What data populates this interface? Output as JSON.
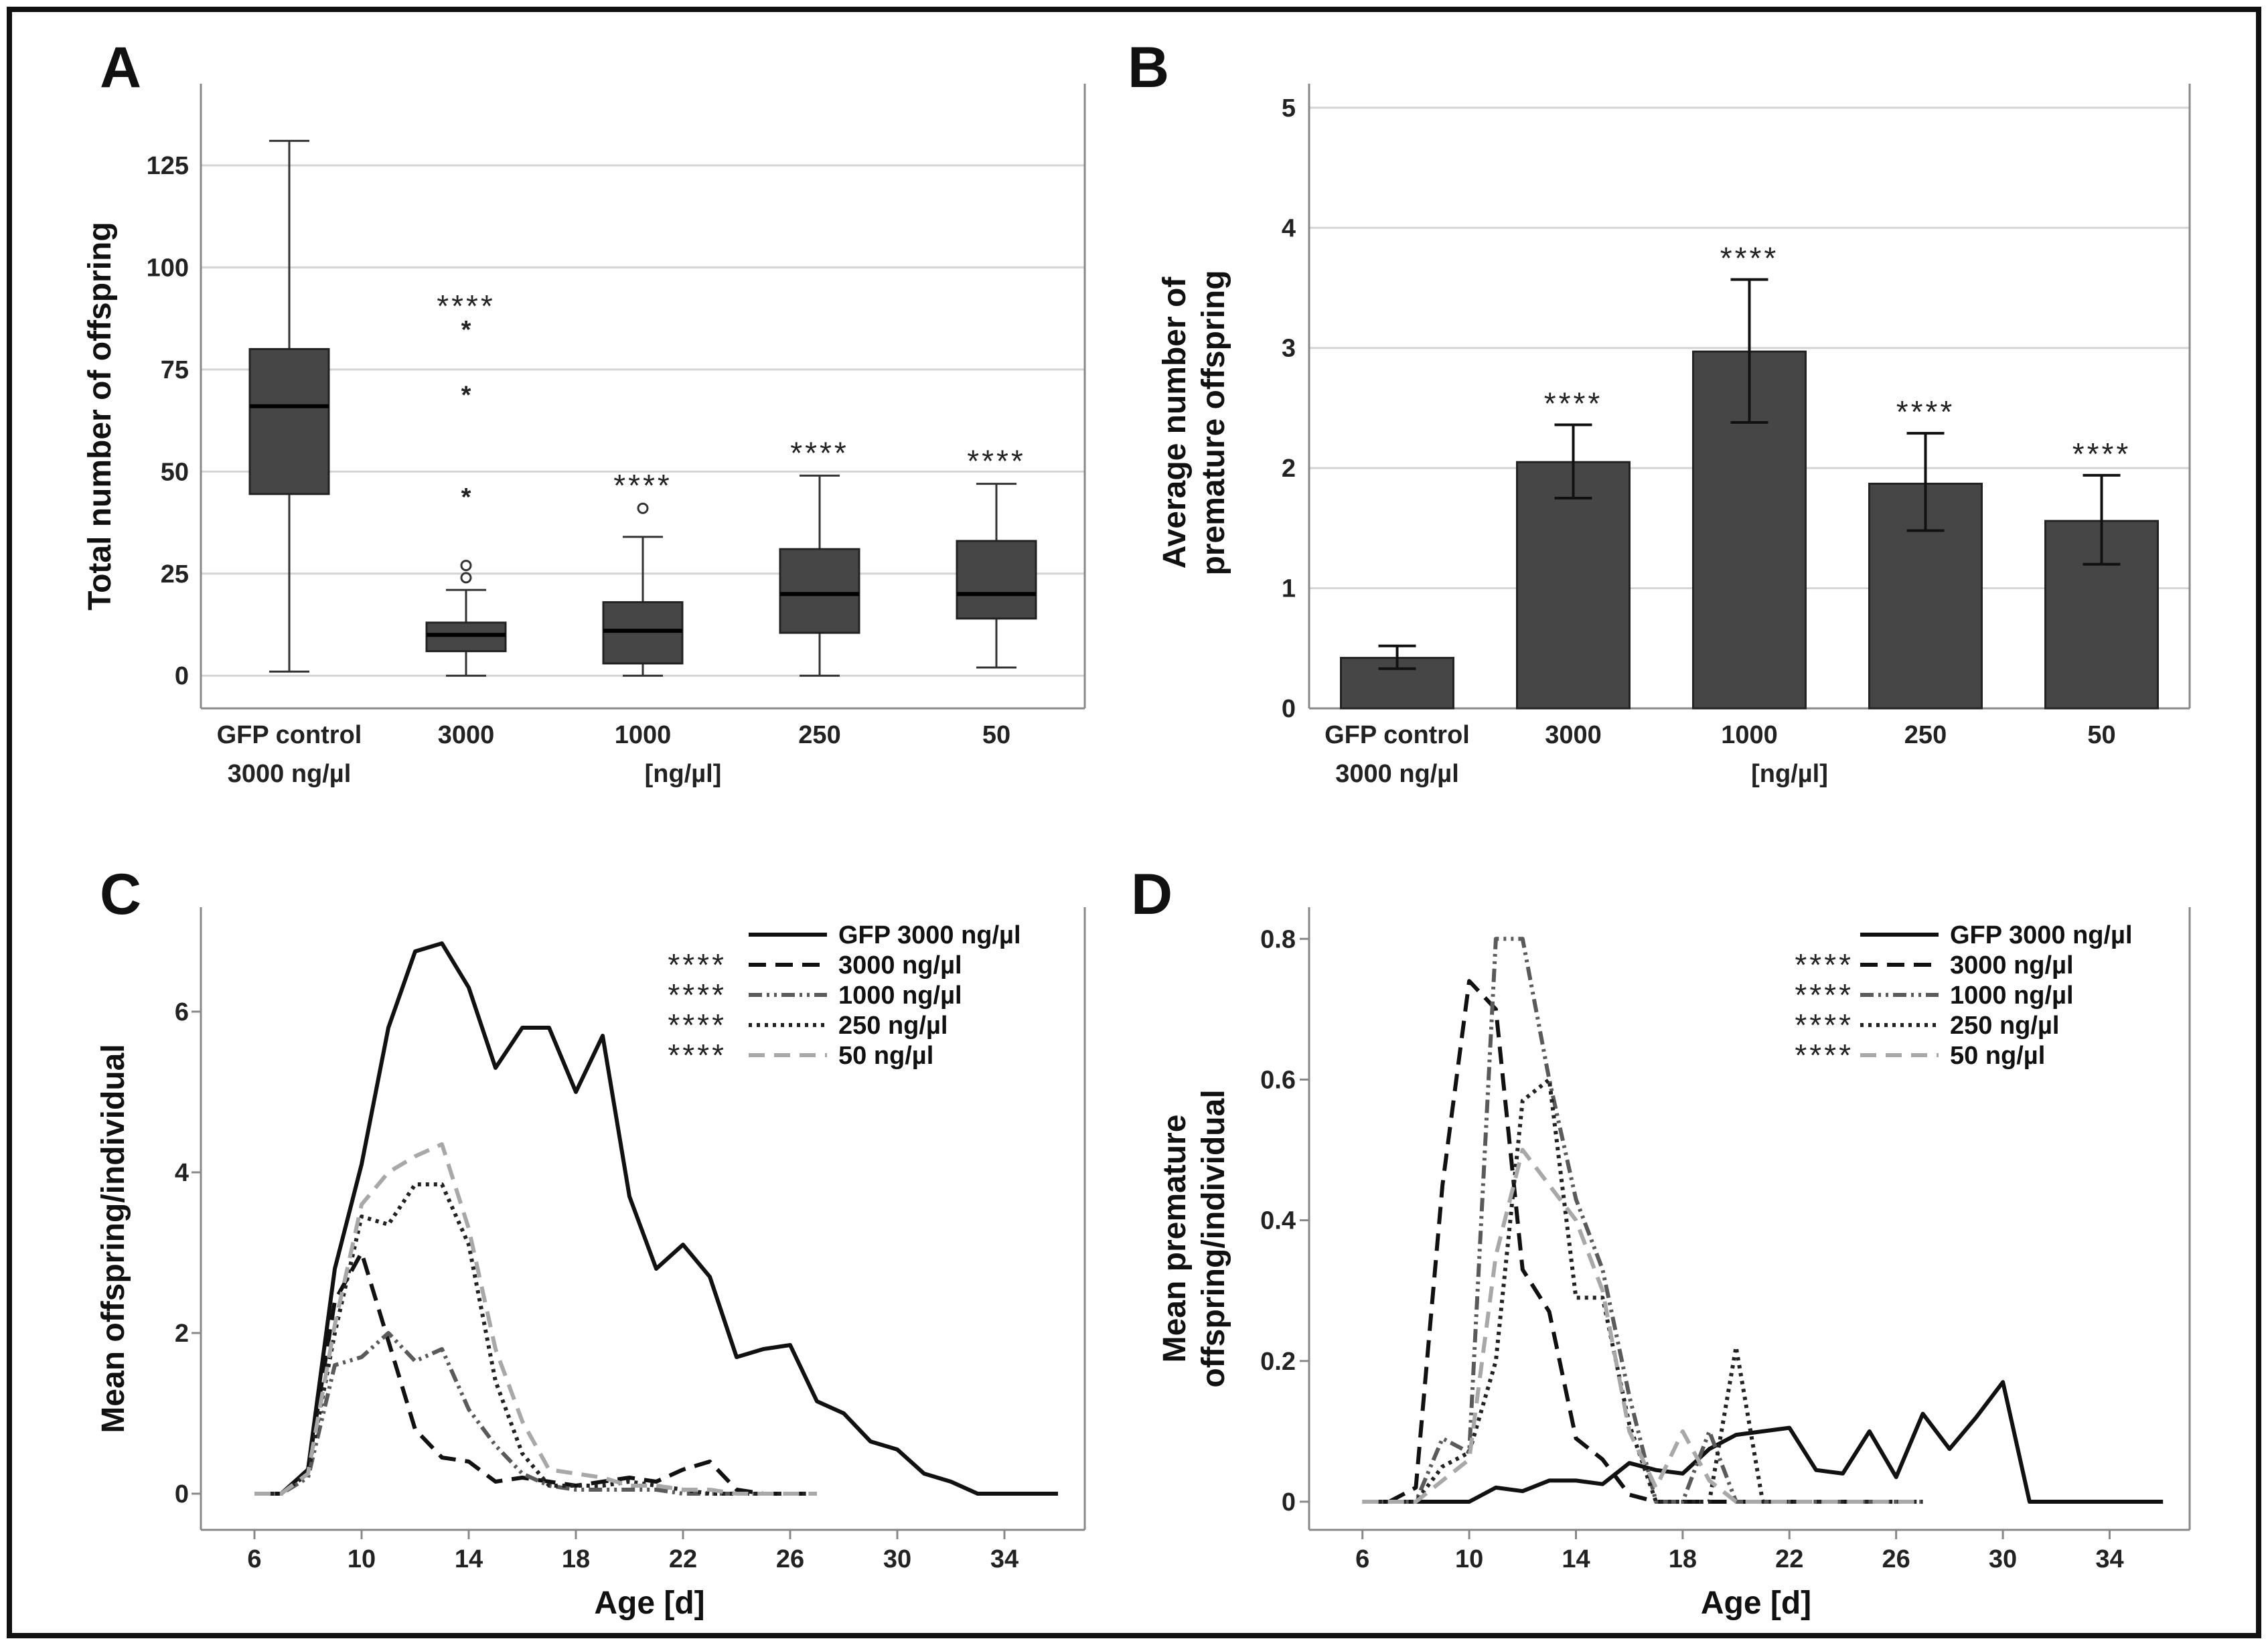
{
  "chart_data": [
    {
      "panel": "A",
      "type": "box",
      "ylabel": "Total number of offspring",
      "xlabel": "[ng/µl]",
      "ylim": [
        -8,
        145
      ],
      "yticks": [
        0,
        25,
        50,
        75,
        100,
        125
      ],
      "categories": [
        [
          "GFP control",
          "3000 ng/µl"
        ],
        [
          "3000"
        ],
        [
          "1000"
        ],
        [
          "250"
        ],
        [
          "50"
        ]
      ],
      "boxes": [
        {
          "min": 1,
          "q1": 44.5,
          "median": 66,
          "q3": 80,
          "max": 131,
          "outliers": [],
          "extremes": [],
          "sig": ""
        },
        {
          "min": 0,
          "q1": 6,
          "median": 10,
          "q3": 13,
          "max": 21,
          "outliers": [
            24,
            27
          ],
          "extremes": [
            44,
            69,
            85
          ],
          "sig": "****"
        },
        {
          "min": 0,
          "q1": 3,
          "median": 11,
          "q3": 18,
          "max": 34,
          "outliers": [
            41
          ],
          "extremes": [],
          "sig": "****"
        },
        {
          "min": 0,
          "q1": 10.5,
          "median": 20,
          "q3": 31,
          "max": 49,
          "outliers": [],
          "extremes": [],
          "sig": "****"
        },
        {
          "min": 2,
          "q1": 14,
          "median": 20,
          "q3": 33,
          "max": 47,
          "outliers": [],
          "extremes": [],
          "sig": "****"
        }
      ]
    },
    {
      "panel": "B",
      "type": "bar",
      "ylabel": [
        "Average number of",
        "premature offspring"
      ],
      "xlabel": "[ng/µl]",
      "ylim": [
        0,
        5.2
      ],
      "yticks": [
        0,
        1,
        2,
        3,
        4,
        5
      ],
      "categories": [
        [
          "GFP control",
          "3000 ng/µl"
        ],
        [
          "3000"
        ],
        [
          "1000"
        ],
        [
          "250"
        ],
        [
          "50"
        ]
      ],
      "values": [
        0.42,
        2.05,
        2.97,
        1.87,
        1.56
      ],
      "err_low": [
        0.33,
        1.75,
        2.38,
        1.48,
        1.2
      ],
      "err_high": [
        0.52,
        2.36,
        3.57,
        2.29,
        1.94
      ],
      "sig": [
        "",
        "****",
        "****",
        "****",
        "****"
      ]
    },
    {
      "panel": "C",
      "type": "line",
      "xlabel": "Age [d]",
      "ylabel": "Mean offspring/individual",
      "xlim": [
        4,
        37
      ],
      "ylim": [
        -0.45,
        7.3
      ],
      "xticks": [
        6,
        10,
        14,
        18,
        22,
        26,
        30,
        34
      ],
      "yticks": [
        0,
        2,
        4,
        6
      ],
      "series": [
        {
          "name": "GFP 3000 ng/µl",
          "sig": "",
          "style": "solid",
          "x": [
            6,
            7,
            8,
            9,
            10,
            11,
            12,
            13,
            14,
            15,
            16,
            17,
            18,
            19,
            20,
            21,
            22,
            23,
            24,
            25,
            26,
            27,
            28,
            29,
            30,
            31,
            32,
            33,
            34,
            35,
            36
          ],
          "y": [
            0,
            0,
            0.3,
            2.8,
            4.1,
            5.8,
            6.75,
            6.85,
            6.3,
            5.3,
            5.8,
            5.8,
            5.0,
            5.7,
            3.7,
            2.8,
            3.1,
            2.7,
            1.7,
            1.8,
            1.85,
            1.15,
            1.0,
            0.65,
            0.55,
            0.25,
            0.15,
            0,
            0,
            0,
            0
          ]
        },
        {
          "name": "3000 ng/µl",
          "sig": "****",
          "style": "dash",
          "x": [
            6,
            7,
            8,
            9,
            10,
            11,
            12,
            13,
            14,
            15,
            16,
            17,
            18,
            19,
            20,
            21,
            22,
            23,
            24,
            25,
            26,
            27
          ],
          "y": [
            0,
            0,
            0.3,
            2.4,
            3.0,
            1.9,
            0.8,
            0.45,
            0.4,
            0.15,
            0.2,
            0.15,
            0.1,
            0.15,
            0.2,
            0.15,
            0.3,
            0.4,
            0.05,
            0,
            0,
            0
          ]
        },
        {
          "name": "1000 ng/µl",
          "sig": "****",
          "style": "dashdotdot",
          "x": [
            6,
            7,
            8,
            9,
            10,
            11,
            12,
            13,
            14,
            15,
            16,
            17,
            18,
            19,
            20,
            21,
            22,
            23,
            24,
            25,
            26,
            27
          ],
          "y": [
            0,
            0,
            0.2,
            1.6,
            1.7,
            2.0,
            1.65,
            1.8,
            1.05,
            0.6,
            0.25,
            0.1,
            0.05,
            0.05,
            0.05,
            0.05,
            0,
            0,
            0,
            0,
            0,
            0
          ]
        },
        {
          "name": "250 ng/µl",
          "sig": "****",
          "style": "dot",
          "x": [
            6,
            7,
            8,
            9,
            10,
            11,
            12,
            13,
            14,
            15,
            16,
            17,
            18,
            19,
            20,
            21,
            22,
            23,
            24,
            25,
            26,
            27
          ],
          "y": [
            0,
            0,
            0.25,
            2.0,
            3.45,
            3.35,
            3.85,
            3.85,
            3.1,
            1.4,
            0.5,
            0.1,
            0.1,
            0.1,
            0.15,
            0.1,
            0.05,
            0,
            0,
            0,
            0,
            0
          ]
        },
        {
          "name": "50 ng/µl",
          "sig": "****",
          "style": "dash-gray",
          "x": [
            6,
            7,
            8,
            9,
            10,
            11,
            12,
            13,
            14,
            15,
            16,
            17,
            18,
            19,
            20,
            21,
            22,
            23,
            24,
            25,
            26,
            27
          ],
          "y": [
            0,
            0,
            0.25,
            2.1,
            3.6,
            4.0,
            4.2,
            4.35,
            3.3,
            1.8,
            0.9,
            0.3,
            0.25,
            0.2,
            0.1,
            0.1,
            0.05,
            0.05,
            0,
            0,
            0,
            0
          ]
        }
      ]
    },
    {
      "panel": "D",
      "type": "line",
      "xlabel": "Age [d]",
      "ylabel": [
        "Mean premature",
        "offspring/individual"
      ],
      "xlim": [
        4,
        37
      ],
      "ylim": [
        -0.04,
        0.845
      ],
      "xticks": [
        6,
        10,
        14,
        18,
        22,
        26,
        30,
        34
      ],
      "yticks": [
        0,
        0.2,
        0.4,
        0.6,
        0.8
      ],
      "series": [
        {
          "name": "GFP 3000 ng/µl",
          "sig": "",
          "style": "solid",
          "x": [
            6,
            7,
            8,
            9,
            10,
            11,
            12,
            13,
            14,
            15,
            16,
            17,
            18,
            19,
            20,
            21,
            22,
            23,
            24,
            25,
            26,
            27,
            28,
            29,
            30,
            31,
            32,
            33,
            34,
            35,
            36
          ],
          "y": [
            0,
            0,
            0,
            0,
            0,
            0.02,
            0.015,
            0.03,
            0.03,
            0.025,
            0.055,
            0.045,
            0.04,
            0.075,
            0.095,
            0.1,
            0.105,
            0.045,
            0.04,
            0.1,
            0.035,
            0.125,
            0.075,
            0.12,
            0.17,
            0,
            0,
            0,
            0,
            0,
            0
          ]
        },
        {
          "name": "3000 ng/µl",
          "sig": "****",
          "style": "dash",
          "x": [
            6,
            7,
            8,
            9,
            10,
            11,
            12,
            13,
            14,
            15,
            16,
            17,
            18,
            19,
            20,
            21,
            22,
            23,
            24,
            25,
            26,
            27
          ],
          "y": [
            0,
            0,
            0.02,
            0.45,
            0.74,
            0.7,
            0.33,
            0.27,
            0.09,
            0.06,
            0.01,
            0,
            0,
            0,
            0,
            0,
            0,
            0,
            0,
            0,
            0,
            0
          ]
        },
        {
          "name": "1000 ng/µl",
          "sig": "****",
          "style": "dashdotdot",
          "x": [
            6,
            7,
            8,
            9,
            10,
            11,
            12,
            13,
            14,
            15,
            16,
            17,
            18,
            19,
            20,
            21,
            22,
            23,
            24,
            25,
            26,
            27
          ],
          "y": [
            0,
            0,
            0,
            0.09,
            0.07,
            0.8,
            0.8,
            0.6,
            0.43,
            0.33,
            0.15,
            0,
            0,
            0.1,
            0,
            0,
            0,
            0,
            0,
            0,
            0,
            0
          ]
        },
        {
          "name": "250 ng/µl",
          "sig": "****",
          "style": "dot",
          "x": [
            6,
            7,
            8,
            9,
            10,
            11,
            12,
            13,
            14,
            15,
            16,
            17,
            18,
            19,
            20,
            21,
            22,
            23,
            24,
            25,
            26,
            27
          ],
          "y": [
            0,
            0,
            0,
            0.05,
            0.07,
            0.2,
            0.57,
            0.6,
            0.29,
            0.29,
            0.11,
            0,
            0,
            0,
            0.22,
            0,
            0,
            0,
            0,
            0,
            0,
            0
          ]
        },
        {
          "name": "50 ng/µl",
          "sig": "****",
          "style": "dash-gray",
          "x": [
            6,
            7,
            8,
            9,
            10,
            11,
            12,
            13,
            14,
            15,
            16,
            17,
            18,
            19,
            20,
            21,
            22,
            23,
            24,
            25,
            26,
            27
          ],
          "y": [
            0,
            0,
            0,
            0.03,
            0.06,
            0.35,
            0.5,
            0.45,
            0.4,
            0.3,
            0.1,
            0.02,
            0.1,
            0.03,
            0,
            0,
            0,
            0,
            0,
            0,
            0,
            0
          ]
        }
      ]
    }
  ]
}
